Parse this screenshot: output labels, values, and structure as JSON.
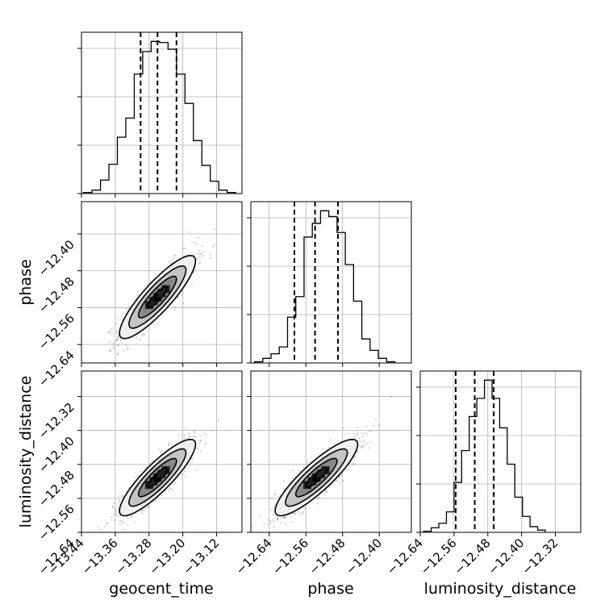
{
  "chart_data": {
    "type": "corner",
    "parameters": [
      "geocent_time",
      "phase",
      "luminosity_distance"
    ],
    "tick_labels": {
      "geocent_time": [
        "−13.44",
        "−13.36",
        "−13.28",
        "−13.20",
        "−13.12"
      ],
      "phase": [
        "−12.64",
        "−12.56",
        "−12.48",
        "−12.40"
      ],
      "luminosity_distance": [
        "−12.64",
        "−12.56",
        "−12.48",
        "−12.40",
        "−12.32"
      ]
    },
    "axis_ranges": {
      "geocent_time": [
        -13.44,
        -13.06
      ],
      "phase": [
        -12.68,
        -12.33
      ],
      "luminosity_distance": [
        -12.64,
        -12.26
      ]
    },
    "histograms": {
      "geocent_time": {
        "bin_edges": [
          -13.435,
          -13.415,
          -13.395,
          -13.375,
          -13.355,
          -13.335,
          -13.315,
          -13.295,
          -13.275,
          -13.255,
          -13.235,
          -13.215,
          -13.195,
          -13.175,
          -13.155,
          -13.135,
          -13.115,
          -13.095,
          -13.075
        ],
        "counts": [
          1,
          3,
          12,
          26,
          50,
          67,
          106,
          126,
          135,
          134,
          128,
          106,
          80,
          47,
          25,
          11,
          3,
          1
        ]
      },
      "phase": {
        "bin_edges": [
          -12.672,
          -12.654,
          -12.636,
          -12.618,
          -12.6,
          -12.582,
          -12.564,
          -12.546,
          -12.528,
          -12.51,
          -12.492,
          -12.474,
          -12.456,
          -12.438,
          -12.42,
          -12.402,
          -12.384,
          -12.366
        ],
        "counts": [
          1,
          4,
          8,
          14,
          40,
          58,
          110,
          122,
          133,
          128,
          114,
          86,
          54,
          21,
          11,
          4,
          1
        ]
      },
      "luminosity_distance": {
        "bin_edges": [
          -12.632,
          -12.614,
          -12.596,
          -12.578,
          -12.56,
          -12.542,
          -12.524,
          -12.506,
          -12.488,
          -12.47,
          -12.452,
          -12.434,
          -12.416,
          -12.398,
          -12.38,
          -12.362,
          -12.344
        ],
        "counts": [
          1,
          4,
          8,
          18,
          44,
          72,
          102,
          118,
          134,
          118,
          92,
          60,
          31,
          14,
          5,
          2
        ]
      }
    },
    "quantiles": {
      "geocent_time": [
        -13.3,
        -13.26,
        -13.215
      ],
      "phase": [
        -12.585,
        -12.54,
        -12.49
      ],
      "luminosity_distance": [
        -12.556,
        -12.511,
        -12.466
      ]
    },
    "density": {
      "pairs": [
        [
          "geocent_time",
          "phase"
        ],
        [
          "geocent_time",
          "luminosity_distance"
        ],
        [
          "phase",
          "luminosity_distance"
        ]
      ],
      "means": {
        "geocent_time": -13.26,
        "phase": -12.537,
        "luminosity_distance": -12.511
      },
      "sigmas": {
        "geocent_time": 0.045,
        "phase": 0.045,
        "luminosity_distance": 0.045
      },
      "correlation": 0.87,
      "contour_sigma_levels": [
        0.5,
        1.0,
        1.5,
        2.0
      ]
    },
    "grid": true,
    "legend": "none"
  }
}
